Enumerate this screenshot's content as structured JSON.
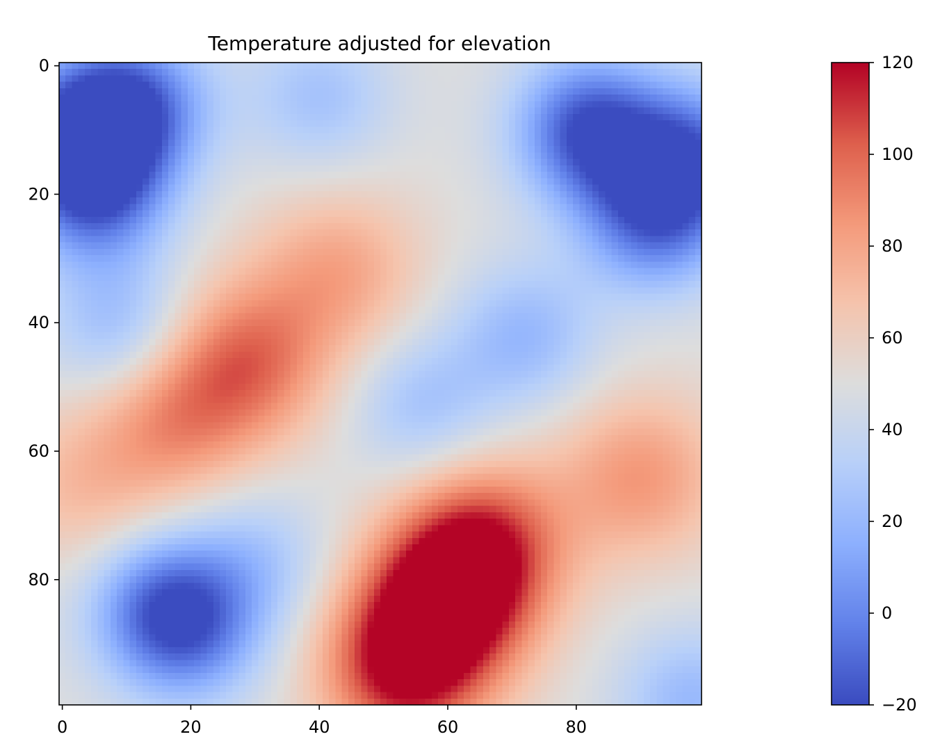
{
  "chart_data": {
    "type": "heatmap",
    "title": "Temperature adjusted for elevation",
    "xlabel": "",
    "ylabel": "",
    "grid": false,
    "colormap": "coolwarm",
    "grid_size": [
      100,
      100
    ],
    "x_ticks": [
      "0",
      "20",
      "40",
      "60",
      "80"
    ],
    "y_ticks": [
      "0",
      "20",
      "40",
      "60",
      "80"
    ],
    "colorbar": {
      "range": [
        -20,
        120
      ],
      "ticks": [
        "−20",
        "0",
        "20",
        "40",
        "60",
        "80",
        "100",
        "120"
      ]
    },
    "features": [
      {
        "kind": "cold",
        "x": 3,
        "y": 10,
        "value": -15
      },
      {
        "kind": "cold",
        "x": 5,
        "y": 20,
        "value": -5
      },
      {
        "kind": "cold",
        "x": 12,
        "y": 6,
        "value": 0
      },
      {
        "kind": "cold",
        "x": 82,
        "y": 10,
        "value": -18
      },
      {
        "kind": "cold",
        "x": 98,
        "y": 14,
        "value": -5
      },
      {
        "kind": "cold",
        "x": 92,
        "y": 24,
        "value": -3
      },
      {
        "kind": "cold",
        "x": 9,
        "y": 41,
        "value": 20
      },
      {
        "kind": "cold",
        "x": 40,
        "y": 5,
        "value": 25
      },
      {
        "kind": "cold",
        "x": 72,
        "y": 42,
        "value": 20
      },
      {
        "kind": "cold",
        "x": 56,
        "y": 53,
        "value": 25
      },
      {
        "kind": "cold",
        "x": 15,
        "y": 84,
        "value": 8
      },
      {
        "kind": "cold",
        "x": 20,
        "y": 88,
        "value": 8
      },
      {
        "kind": "cold",
        "x": 30,
        "y": 77,
        "value": 28
      },
      {
        "kind": "cold",
        "x": 98,
        "y": 99,
        "value": 20
      },
      {
        "kind": "warm",
        "x": 29,
        "y": 46,
        "value": 95
      },
      {
        "kind": "warm",
        "x": 17,
        "y": 55,
        "value": 85
      },
      {
        "kind": "warm",
        "x": 43,
        "y": 32,
        "value": 80
      },
      {
        "kind": "warm",
        "x": 3,
        "y": 66,
        "value": 70
      },
      {
        "kind": "warm",
        "x": 90,
        "y": 64,
        "value": 85
      },
      {
        "kind": "warm",
        "x": 60,
        "y": 83,
        "value": 120
      },
      {
        "kind": "warm",
        "x": 53,
        "y": 94,
        "value": 115
      },
      {
        "kind": "warm",
        "x": 66,
        "y": 74,
        "value": 100
      }
    ]
  }
}
